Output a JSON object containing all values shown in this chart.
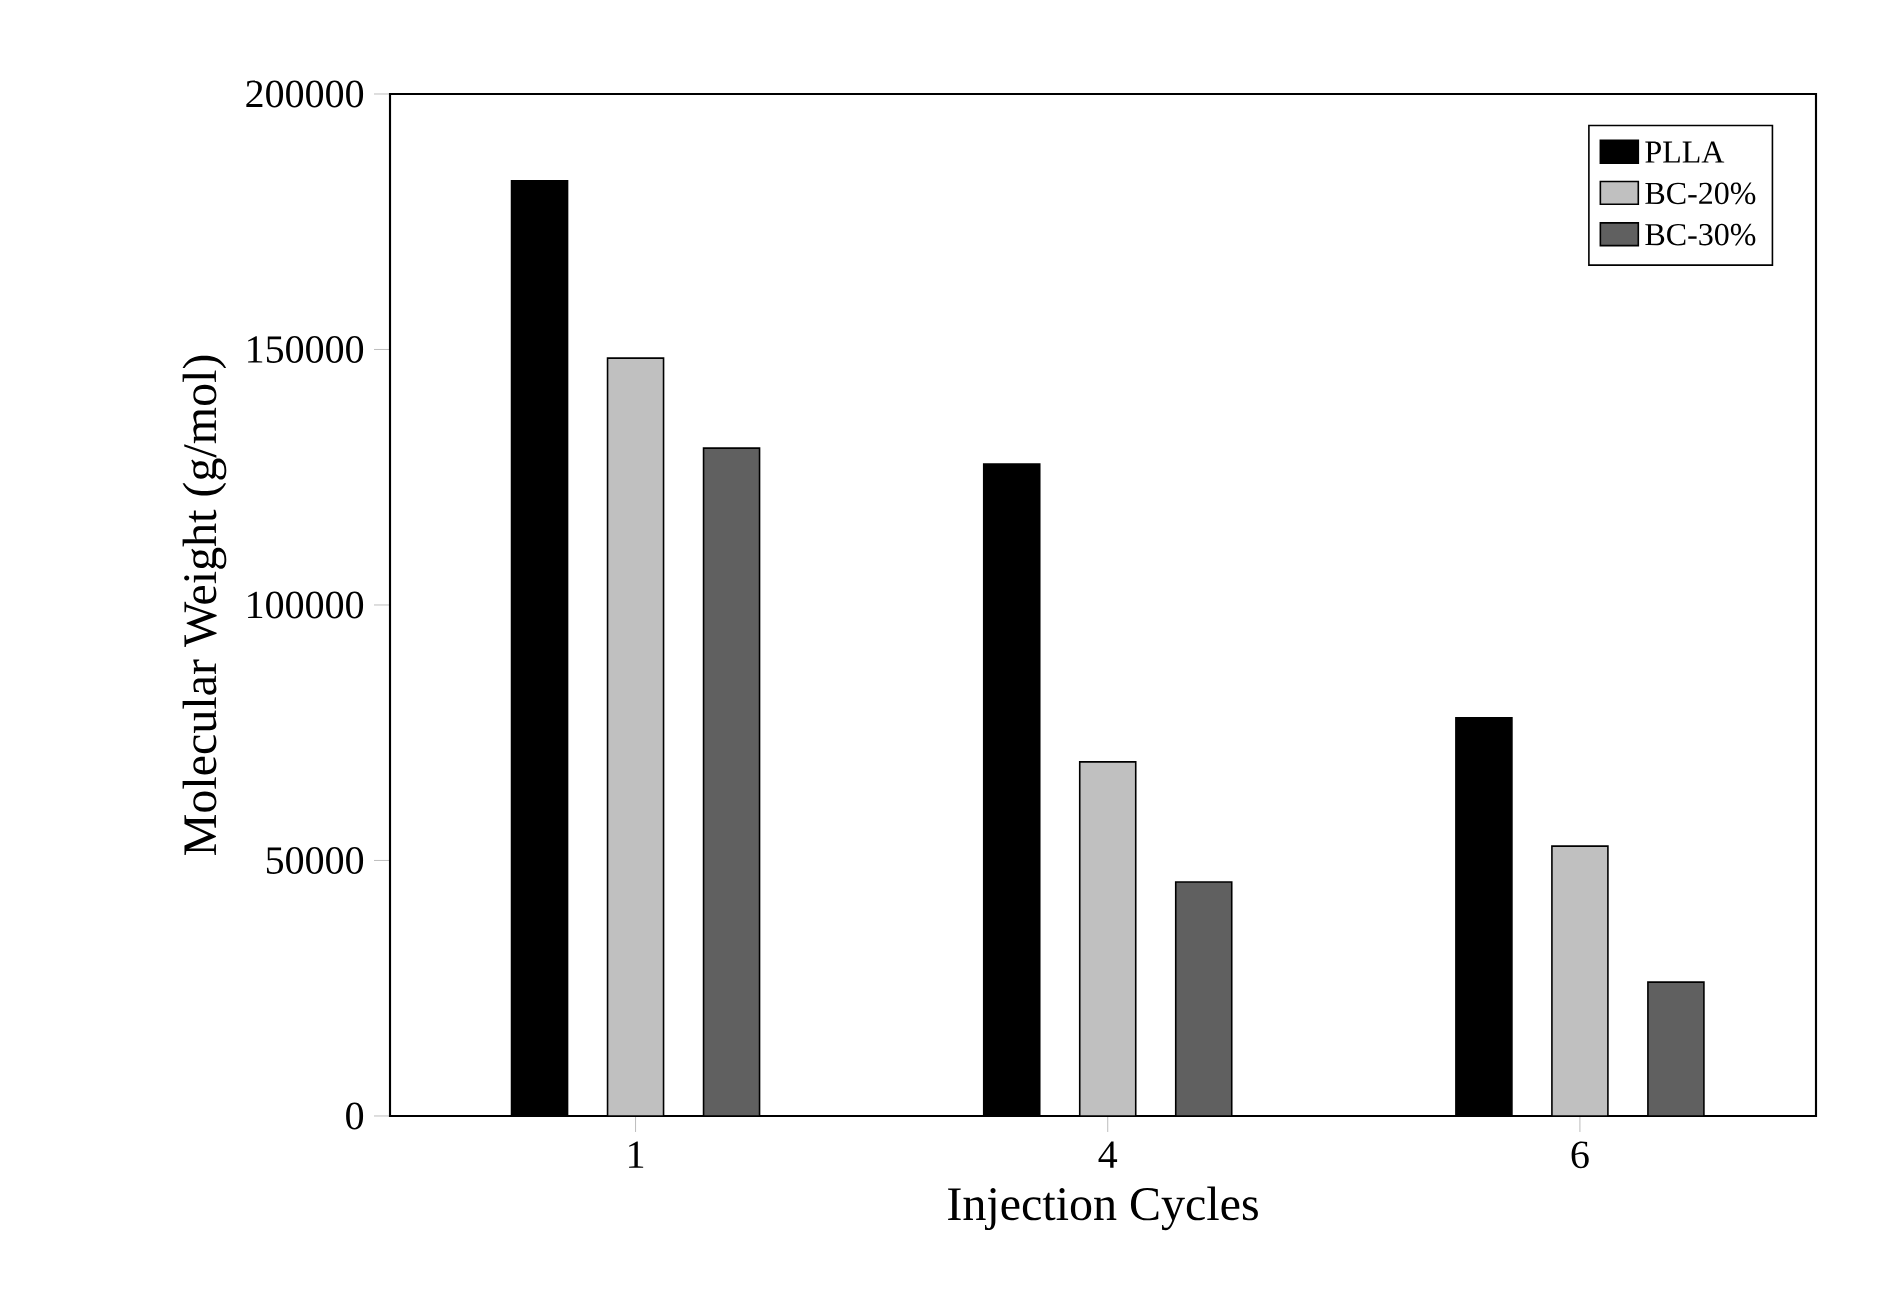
{
  "chart_data": {
    "type": "bar",
    "xlabel": "Injection Cycles",
    "ylabel": "Molecular Weight (g/mol)",
    "categories": [
      "1",
      "4",
      "6"
    ],
    "series": [
      {
        "name": "PLLA",
        "color": "#000000",
        "values": [
          183000,
          127600,
          77900
        ]
      },
      {
        "name": "BC-20%",
        "color": "#c0c0c0",
        "values": [
          148300,
          69300,
          52800
        ]
      },
      {
        "name": "BC-30%",
        "color": "#606060",
        "values": [
          130700,
          45800,
          26200
        ]
      }
    ],
    "ylim": [
      0,
      200000
    ],
    "yticks": [
      0,
      50000,
      100000,
      150000,
      200000
    ],
    "grid": false,
    "legend": "top right"
  }
}
